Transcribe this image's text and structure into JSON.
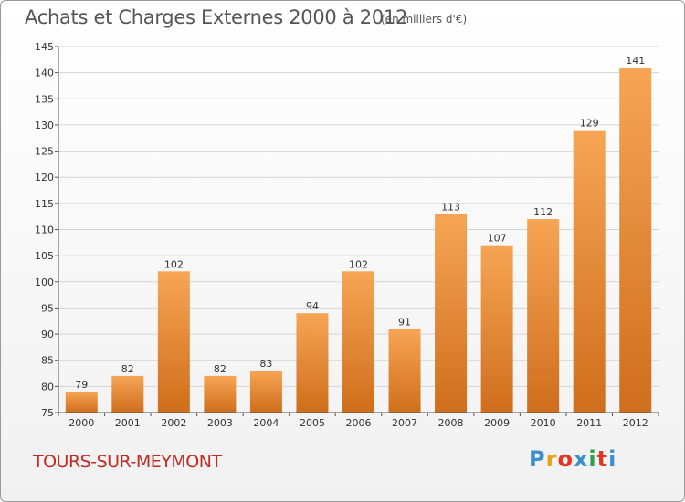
{
  "header": {
    "title": "Achats et Charges Externes 2000 à 2012",
    "unit": "(en milliers d'€)"
  },
  "footer": {
    "commune": "TOURS-SUR-MEYMONT",
    "logo_text": "Proxiti"
  },
  "colors": {
    "bar_light": "#f6a555",
    "bar_dark": "#cf6e1c",
    "commune": "#c02a22"
  },
  "chart_data": {
    "type": "bar",
    "title": "Achats et Charges Externes 2000 à 2012",
    "subtitle": "(en milliers d'€)",
    "categories": [
      "2000",
      "2001",
      "2002",
      "2003",
      "2004",
      "2005",
      "2006",
      "2007",
      "2008",
      "2009",
      "2010",
      "2011",
      "2012"
    ],
    "values": [
      79,
      82,
      102,
      82,
      83,
      94,
      102,
      91,
      113,
      107,
      112,
      129,
      141
    ],
    "ylim": [
      75,
      145
    ],
    "yticks": [
      75,
      80,
      85,
      90,
      95,
      100,
      105,
      110,
      115,
      120,
      125,
      130,
      135,
      140,
      145
    ],
    "grid": true,
    "legend": "none"
  }
}
